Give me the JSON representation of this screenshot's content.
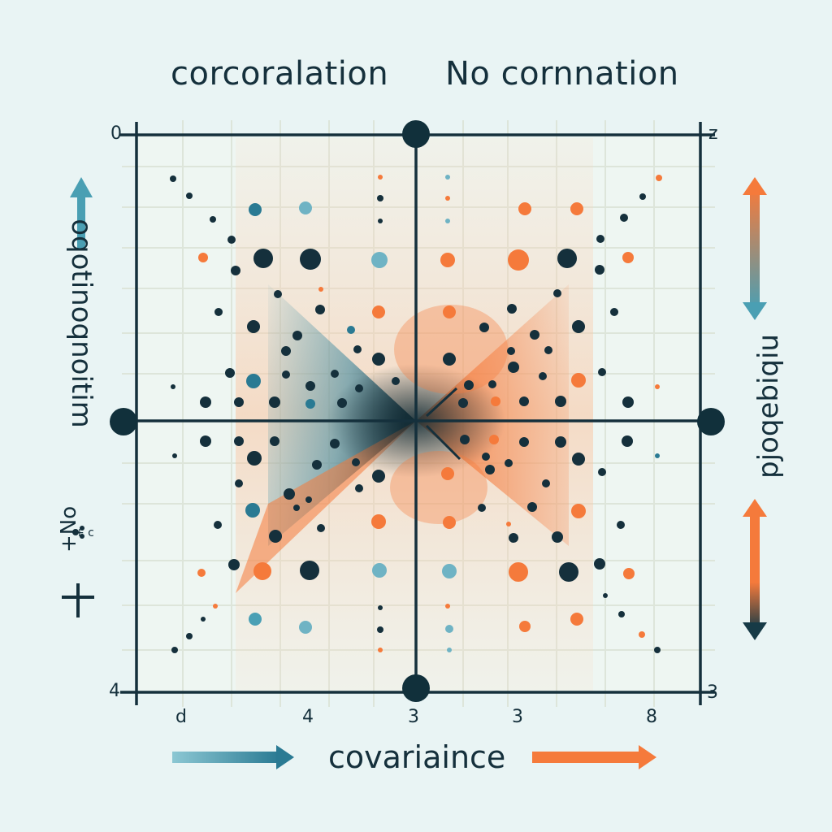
{
  "headings": {
    "left": "corcoralation",
    "right": "No cornnation"
  },
  "axes": {
    "x_label": "covariaince",
    "y_label_left": "oqotinoqnoitim",
    "y_label_right": "pjoqebiqiu",
    "corner_top_left": "0",
    "corner_top_right": "z",
    "corner_bottom_left": "4",
    "corner_bottom_right": "3",
    "x_ticks": [
      "d",
      "4",
      "3",
      "3",
      "8"
    ]
  },
  "side_note": "+No",
  "side_note_small": "+ c",
  "colors": {
    "background": "#e9f4f4",
    "ink": "#15303c",
    "orange": "#f57a3b",
    "teal": "#3a91a8",
    "light_teal": "#74b8c8",
    "grid": "#d9e3dc"
  },
  "icons": {
    "left_up_arrow": "arrow-up-icon",
    "right_double_arrow": "double-arrow-icon",
    "bottom_left_arrow": "arrow-right-icon",
    "bottom_right_arrow": "arrow-right-icon"
  }
}
